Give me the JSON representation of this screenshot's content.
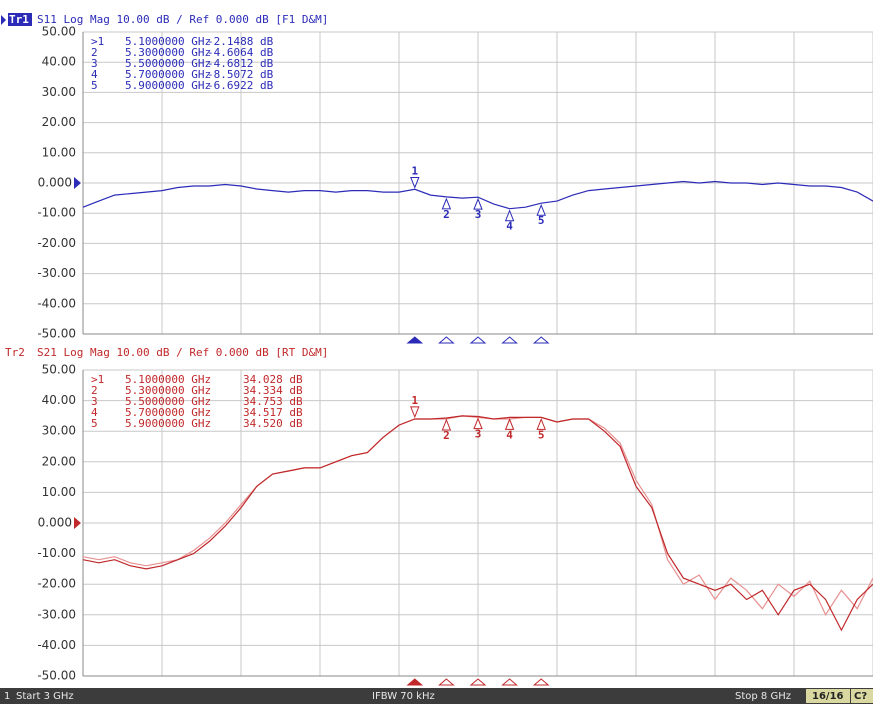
{
  "chart_data": [
    {
      "type": "line",
      "trace_label": "Tr1",
      "title": "S11 Log Mag 10.00 dB / Ref 0.000 dB [F1 D&M]",
      "x": [
        3.0,
        3.1,
        3.2,
        3.3,
        3.4,
        3.5,
        3.6,
        3.7,
        3.8,
        3.9,
        4.0,
        4.1,
        4.2,
        4.3,
        4.4,
        4.5,
        4.6,
        4.7,
        4.8,
        4.9,
        5.0,
        5.1,
        5.2,
        5.3,
        5.4,
        5.5,
        5.6,
        5.7,
        5.8,
        5.9,
        6.0,
        6.1,
        6.2,
        6.3,
        6.4,
        6.5,
        6.6,
        6.7,
        6.8,
        6.9,
        7.0,
        7.1,
        7.2,
        7.3,
        7.4,
        7.5,
        7.6,
        7.7,
        7.8,
        7.9,
        8.0
      ],
      "series": [
        {
          "color": "#2b2bb8",
          "values": [
            -8,
            -6,
            -4,
            -3.5,
            -3,
            -2.5,
            -1.5,
            -1,
            -1,
            -0.5,
            -1,
            -2,
            -2.5,
            -3,
            -2.5,
            -2.5,
            -3,
            -2.5,
            -2.5,
            -3,
            -3,
            -2.1,
            -4,
            -4.6,
            -5,
            -4.7,
            -7,
            -8.5,
            -8,
            -6.7,
            -6,
            -4,
            -2.5,
            -2,
            -1.5,
            -1,
            -0.5,
            0,
            0.5,
            0,
            0.5,
            0,
            0,
            -0.5,
            0,
            -0.5,
            -1,
            -1,
            -1.5,
            -3,
            -6
          ]
        }
      ],
      "markers": {
        "table_ids": [
          ">1",
          "2",
          "3",
          "4",
          "5"
        ],
        "ids": [
          "1",
          "2",
          "3",
          "4",
          "5"
        ],
        "x": [
          5.1,
          5.3,
          5.5,
          5.7,
          5.9
        ],
        "x_labels": [
          "5.1000000 GHz",
          "5.3000000 GHz",
          "5.5000000 GHz",
          "5.7000000 GHz",
          "5.9000000 GHz"
        ],
        "values": [
          -2.1488,
          -4.6064,
          -4.6812,
          -8.5072,
          -6.6922
        ],
        "value_labels": [
          "-2.1488 dB",
          "-4.6064 dB",
          "-4.6812 dB",
          "-8.5072 dB",
          "-6.6922 dB"
        ]
      },
      "xlim": [
        3,
        8
      ],
      "xticks": [
        3,
        3.5,
        4,
        4.5,
        5,
        5.5,
        6,
        6.5,
        7,
        7.5,
        8
      ],
      "ylim": [
        -50,
        50
      ],
      "yticks": [
        {
          "value": 50,
          "label": "50.00"
        },
        {
          "value": 40,
          "label": "40.00"
        },
        {
          "value": 30,
          "label": "30.00"
        },
        {
          "value": 20,
          "label": "20.00"
        },
        {
          "value": 10,
          "label": "10.00"
        },
        {
          "value": 0,
          "label": "0.000"
        },
        {
          "value": -10,
          "label": "-10.00"
        },
        {
          "value": -20,
          "label": "-20.00"
        },
        {
          "value": -30,
          "label": "-30.00"
        },
        {
          "value": -40,
          "label": "-40.00"
        },
        {
          "value": -50,
          "label": "-50.00"
        }
      ],
      "grid": true
    },
    {
      "type": "line",
      "trace_label": "Tr2",
      "title": "S21 Log Mag 10.00 dB / Ref 0.000 dB [RT D&M]",
      "x": [
        3.0,
        3.1,
        3.2,
        3.3,
        3.4,
        3.5,
        3.6,
        3.7,
        3.8,
        3.9,
        4.0,
        4.1,
        4.2,
        4.3,
        4.4,
        4.5,
        4.6,
        4.7,
        4.8,
        4.9,
        5.0,
        5.1,
        5.2,
        5.3,
        5.4,
        5.5,
        5.6,
        5.7,
        5.8,
        5.9,
        6.0,
        6.1,
        6.2,
        6.3,
        6.4,
        6.5,
        6.6,
        6.7,
        6.8,
        6.9,
        7.0,
        7.1,
        7.2,
        7.3,
        7.4,
        7.5,
        7.6,
        7.7,
        7.8,
        7.9,
        8.0
      ],
      "series": [
        {
          "color": "#e89090",
          "values": [
            -11,
            -12,
            -11,
            -13,
            -14,
            -13,
            -12,
            -9,
            -5,
            0,
            6,
            12,
            16,
            17,
            18,
            18,
            20,
            22,
            23,
            28,
            32,
            34,
            34,
            34,
            35,
            34.5,
            34,
            34,
            34.5,
            34.5,
            33,
            34,
            34,
            31,
            26,
            14,
            6,
            -12,
            -20,
            -17,
            -25,
            -18,
            -22,
            -28,
            -20,
            -24,
            -19,
            -30,
            -22,
            -28,
            -18
          ]
        },
        {
          "color": "#c0282a",
          "values": [
            -12,
            -13,
            -12,
            -14,
            -15,
            -14,
            -12,
            -10,
            -6,
            -1,
            5,
            12,
            16,
            17,
            18,
            18,
            20,
            22,
            23,
            28,
            32,
            34,
            34,
            34.3,
            35,
            34.8,
            34,
            34.5,
            34.5,
            34.5,
            33,
            34,
            34,
            30,
            25,
            12,
            5,
            -10,
            -18,
            -20,
            -22,
            -20,
            -25,
            -22,
            -30,
            -22,
            -20,
            -25,
            -35,
            -25,
            -20
          ]
        }
      ],
      "markers": {
        "table_ids": [
          ">1",
          "2",
          "3",
          "4",
          "5"
        ],
        "ids": [
          "1",
          "2",
          "3",
          "4",
          "5"
        ],
        "x": [
          5.1,
          5.3,
          5.5,
          5.7,
          5.9
        ],
        "x_labels": [
          "5.1000000 GHz",
          "5.3000000 GHz",
          "5.5000000 GHz",
          "5.7000000 GHz",
          "5.9000000 GHz"
        ],
        "values": [
          34.028,
          34.334,
          34.753,
          34.517,
          34.52
        ],
        "value_labels": [
          "34.028 dB",
          "34.334 dB",
          "34.753 dB",
          "34.517 dB",
          "34.520 dB"
        ]
      },
      "xlim": [
        3,
        8
      ],
      "xticks": [
        3,
        3.5,
        4,
        4.5,
        5,
        5.5,
        6,
        6.5,
        7,
        7.5,
        8
      ],
      "ylim": [
        -50,
        50
      ],
      "yticks": [
        {
          "value": 50,
          "label": "50.00"
        },
        {
          "value": 40,
          "label": "40.00"
        },
        {
          "value": 30,
          "label": "30.00"
        },
        {
          "value": 20,
          "label": "20.00"
        },
        {
          "value": 10,
          "label": "10.00"
        },
        {
          "value": 0,
          "label": "0.000"
        },
        {
          "value": -10,
          "label": "-10.00"
        },
        {
          "value": -20,
          "label": "-20.00"
        },
        {
          "value": -30,
          "label": "-30.00"
        },
        {
          "value": -40,
          "label": "-40.00"
        },
        {
          "value": -50,
          "label": "-50.00"
        }
      ],
      "grid": true
    }
  ],
  "status_bar": {
    "channel": "1",
    "start": "Start 3 GHz",
    "ifbw": "IFBW 70 kHz",
    "stop": "Stop 8 GHz",
    "sweeps": "16/16",
    "extra": "C?"
  }
}
